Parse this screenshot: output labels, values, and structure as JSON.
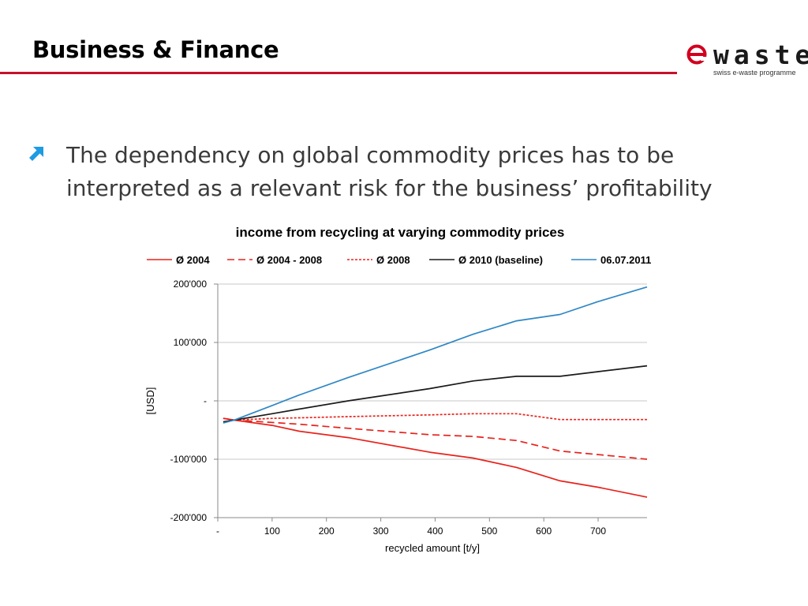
{
  "header": {
    "title": "Business & Finance"
  },
  "logo": {
    "word": "waste",
    "tagline": "swiss e-waste programme",
    "brand_color": "#d1001f"
  },
  "content": {
    "bullet_icon": "arrow-up-right-icon",
    "bullet_color": "#1e9be3",
    "bullet_text": "The dependency on global commodity prices has to be interpreted as a relevant risk for the business’ profitability"
  },
  "chart_data": {
    "type": "line",
    "title": "income from recycling at varying commodity prices",
    "xlabel": "recycled amount [t/y]",
    "ylabel": "[USD]",
    "xlim": [
      0,
      790
    ],
    "ylim": [
      -200000,
      200000
    ],
    "xticks": [
      0,
      100,
      200,
      300,
      400,
      500,
      600,
      700
    ],
    "xtick_labels": [
      "-",
      "100",
      "200",
      "300",
      "400",
      "500",
      "600",
      "700"
    ],
    "yticks": [
      200000,
      100000,
      0,
      -100000,
      -200000
    ],
    "ytick_labels": [
      "200'000",
      "100'000",
      "-",
      "-100'000",
      "-200'000"
    ],
    "grid": true,
    "legend_position": "top",
    "series": [
      {
        "name": "Ø 2004",
        "color": "#e8221b",
        "dash": "solid",
        "x": [
          10,
          30,
          100,
          150,
          240,
          390,
          470,
          550,
          630,
          700,
          790
        ],
        "y": [
          -30000,
          -33000,
          -42000,
          -52000,
          -63000,
          -88000,
          -98000,
          -114000,
          -137000,
          -148000,
          -165000
        ]
      },
      {
        "name": "Ø 2004 - 2008",
        "color": "#e8221b",
        "dash": "long",
        "x": [
          10,
          30,
          100,
          150,
          240,
          390,
          470,
          550,
          630,
          700,
          790
        ],
        "y": [
          -30000,
          -33000,
          -37000,
          -40000,
          -47000,
          -58000,
          -61000,
          -68000,
          -86000,
          -92000,
          -100000
        ]
      },
      {
        "name": "Ø 2008",
        "color": "#e8221b",
        "dash": "short",
        "x": [
          10,
          30,
          100,
          150,
          240,
          390,
          470,
          550,
          630,
          700,
          790
        ],
        "y": [
          -30000,
          -33000,
          -30000,
          -29000,
          -27000,
          -24000,
          -22000,
          -22000,
          -32000,
          -32000,
          -32000
        ]
      },
      {
        "name": "Ø 2010 (baseline)",
        "color": "#1a1a1a",
        "dash": "solid",
        "x": [
          10,
          30,
          100,
          150,
          240,
          390,
          470,
          550,
          630,
          700,
          790
        ],
        "y": [
          -36000,
          -33000,
          -22000,
          -14000,
          0,
          21000,
          34000,
          42000,
          42000,
          50000,
          60000
        ]
      },
      {
        "name": "06.07.2011",
        "color": "#2f87c5",
        "dash": "solid",
        "x": [
          10,
          30,
          100,
          150,
          240,
          390,
          470,
          550,
          630,
          700,
          790
        ],
        "y": [
          -38000,
          -33000,
          -8000,
          10000,
          40000,
          87000,
          114000,
          137000,
          148000,
          170000,
          195000
        ]
      }
    ]
  }
}
